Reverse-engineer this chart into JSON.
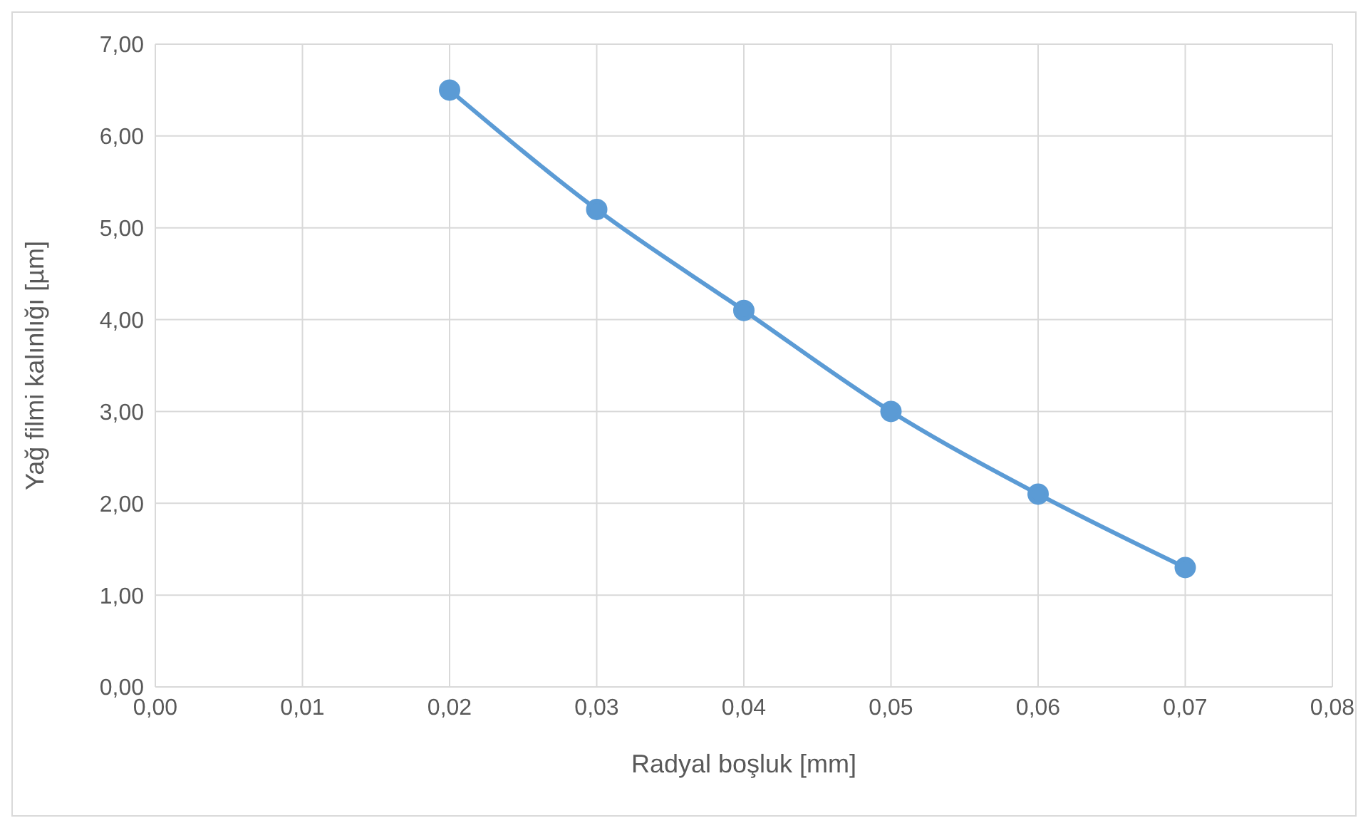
{
  "chart_data": {
    "type": "line",
    "xlabel": "Radyal boşluk [mm]",
    "ylabel": "Yağ filmi kalınlığı [µm]",
    "x": [
      0.02,
      0.03,
      0.04,
      0.05,
      0.06,
      0.07
    ],
    "series": [
      {
        "color": "#5b9bd5",
        "values": [
          6.5,
          5.2,
          4.1,
          3.0,
          2.1,
          1.3
        ]
      }
    ],
    "xlim": [
      0,
      0.08
    ],
    "xticks": [
      {
        "value": 0,
        "label": "0,00"
      },
      {
        "value": 0.01,
        "label": "0,01"
      },
      {
        "value": 0.02,
        "label": "0,02"
      },
      {
        "value": 0.03,
        "label": "0,03"
      },
      {
        "value": 0.04,
        "label": "0,04"
      },
      {
        "value": 0.05,
        "label": "0,05"
      },
      {
        "value": 0.06,
        "label": "0,06"
      },
      {
        "value": 0.07,
        "label": "0,07"
      },
      {
        "value": 0.08,
        "label": "0,08"
      }
    ],
    "ylim": [
      0,
      7
    ],
    "yticks": [
      {
        "value": 0,
        "label": "0,00"
      },
      {
        "value": 1,
        "label": "1,00"
      },
      {
        "value": 2,
        "label": "2,00"
      },
      {
        "value": 3,
        "label": "3,00"
      },
      {
        "value": 4,
        "label": "4,00"
      },
      {
        "value": 5,
        "label": "5,00"
      },
      {
        "value": 6,
        "label": "6,00"
      },
      {
        "value": 7,
        "label": "7,00"
      }
    ],
    "grid": true,
    "marker": "circle",
    "legend": false
  }
}
